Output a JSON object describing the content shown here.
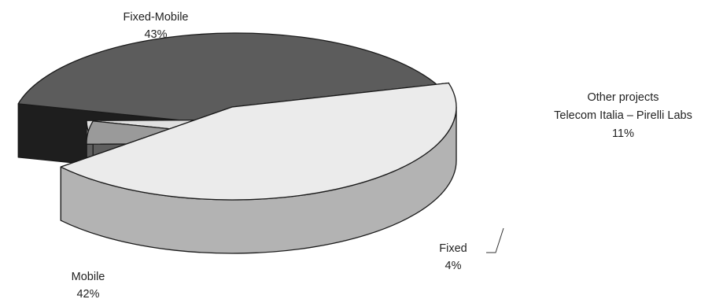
{
  "chart_data": {
    "type": "pie",
    "style": "3d-exploded",
    "title": "",
    "categories": [
      "Fixed-Mobile",
      "Other projects Telecom Italia – Pirelli Labs",
      "Fixed",
      "Mobile"
    ],
    "values": [
      43,
      11,
      4,
      42
    ],
    "slices": [
      {
        "label": "Fixed-Mobile",
        "label_lines": [
          "Fixed-Mobile"
        ],
        "value_text": "43%",
        "value": 43,
        "top_color": "#ebebeb",
        "side_color": "#b3b3b3"
      },
      {
        "label": "Other projects Telecom Italia – Pirelli Labs",
        "label_lines": [
          "Other projects",
          "Telecom Italia – Pirelli Labs"
        ],
        "value_text": "11%",
        "value": 11,
        "top_color": "#e0e0e0",
        "side_color": "#a2a2a2"
      },
      {
        "label": "Fixed",
        "label_lines": [
          "Fixed"
        ],
        "value_text": "4%",
        "value": 4,
        "top_color": "#9a9a9a",
        "side_color": "#5e5e5e"
      },
      {
        "label": "Mobile",
        "label_lines": [
          "Mobile"
        ],
        "value_text": "42%",
        "value": 42,
        "top_color": "#5c5c5c",
        "side_color": "#1e1e1e"
      }
    ],
    "legend": "none",
    "grid": false
  }
}
